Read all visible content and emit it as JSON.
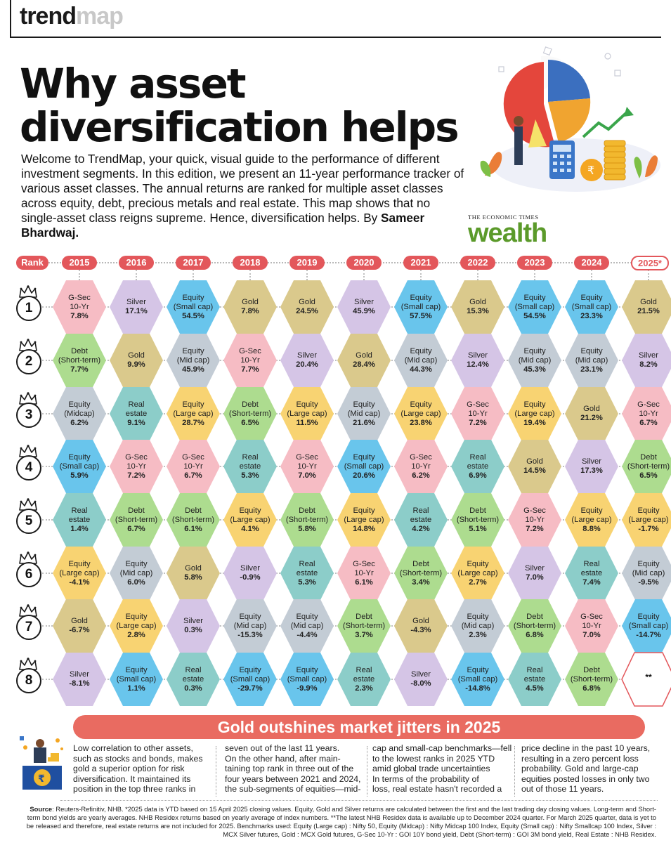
{
  "brand": {
    "part1": "trend",
    "part2": "map"
  },
  "title": "Why asset diversification helps",
  "intro": {
    "text": "Welcome to TrendMap, your quick, visual guide to the performance of different investment segments. In this edition, we present an 11-year performance tracker of various asset classes. The annual returns are ranked for multiple asset classes across equity, debt, precious metals and real estate. This map shows that no single-asset class reigns supreme. Hence, diversification helps. By ",
    "author": "Sameer Bhardwaj."
  },
  "logo": {
    "top": "THE ECONOMIC TIMES",
    "word": "wealth"
  },
  "table": {
    "rank_label": "Rank",
    "years": [
      "2015",
      "2016",
      "2017",
      "2018",
      "2019",
      "2020",
      "2021",
      "2022",
      "2023",
      "2024",
      "2025*"
    ],
    "ranks": [
      "1",
      "2",
      "3",
      "4",
      "5",
      "6",
      "7",
      "8"
    ],
    "rows": [
      [
        {
          "label": "G-Sec\n10-Yr",
          "value": "7.8%",
          "kind": "gsec"
        },
        {
          "label": "Silver",
          "value": "17.1%",
          "kind": "silver"
        },
        {
          "label": "Equity\n(Small cap)",
          "value": "54.5%",
          "kind": "eqs"
        },
        {
          "label": "Gold",
          "value": "7.8%",
          "kind": "gold"
        },
        {
          "label": "Gold",
          "value": "24.5%",
          "kind": "gold"
        },
        {
          "label": "Silver",
          "value": "45.9%",
          "kind": "silver"
        },
        {
          "label": "Equity\n(Small cap)",
          "value": "57.5%",
          "kind": "eqs"
        },
        {
          "label": "Gold",
          "value": "15.3%",
          "kind": "gold"
        },
        {
          "label": "Equity\n(Small cap)",
          "value": "54.5%",
          "kind": "eqs"
        },
        {
          "label": "Equity\n(Small cap)",
          "value": "23.3%",
          "kind": "eqs"
        },
        {
          "label": "Gold",
          "value": "21.5%",
          "kind": "gold"
        }
      ],
      [
        {
          "label": "Debt\n(Short-term)",
          "value": "7.7%",
          "kind": "debt"
        },
        {
          "label": "Gold",
          "value": "9.9%",
          "kind": "gold"
        },
        {
          "label": "Equity\n(Mid cap)",
          "value": "45.9%",
          "kind": "eqm"
        },
        {
          "label": "G-Sec\n10-Yr",
          "value": "7.7%",
          "kind": "gsec"
        },
        {
          "label": "Silver",
          "value": "20.4%",
          "kind": "silver"
        },
        {
          "label": "Gold",
          "value": "28.4%",
          "kind": "gold"
        },
        {
          "label": "Equity\n(Mid cap)",
          "value": "44.3%",
          "kind": "eqm"
        },
        {
          "label": "Silver",
          "value": "12.4%",
          "kind": "silver"
        },
        {
          "label": "Equity\n(Mid cap)",
          "value": "45.3%",
          "kind": "eqm"
        },
        {
          "label": "Equity\n(Mid cap)",
          "value": "23.1%",
          "kind": "eqm"
        },
        {
          "label": "Silver",
          "value": "8.2%",
          "kind": "silver"
        }
      ],
      [
        {
          "label": "Equity\n(Midcap)",
          "value": "6.2%",
          "kind": "eqm"
        },
        {
          "label": "Real\nestate",
          "value": "9.1%",
          "kind": "real"
        },
        {
          "label": "Equity\n(Large cap)",
          "value": "28.7%",
          "kind": "eql"
        },
        {
          "label": "Debt\n(Short-term)",
          "value": "6.5%",
          "kind": "debt"
        },
        {
          "label": "Equity\n(Large cap)",
          "value": "11.5%",
          "kind": "eql"
        },
        {
          "label": "Equity\n(Mid cap)",
          "value": "21.6%",
          "kind": "eqm"
        },
        {
          "label": "Equity\n(Large cap)",
          "value": "23.8%",
          "kind": "eql"
        },
        {
          "label": "G-Sec\n10-Yr",
          "value": "7.2%",
          "kind": "gsec"
        },
        {
          "label": "Equity\n(Large cap)",
          "value": "19.4%",
          "kind": "eql"
        },
        {
          "label": "Gold",
          "value": "21.2%",
          "kind": "gold"
        },
        {
          "label": "G-Sec\n10-Yr",
          "value": "6.7%",
          "kind": "gsec"
        }
      ],
      [
        {
          "label": "Equity\n(Small cap)",
          "value": "5.9%",
          "kind": "eqs"
        },
        {
          "label": "G-Sec\n10-Yr",
          "value": "7.2%",
          "kind": "gsec"
        },
        {
          "label": "G-Sec\n10-Yr",
          "value": "6.7%",
          "kind": "gsec"
        },
        {
          "label": "Real\nestate",
          "value": "5.3%",
          "kind": "real"
        },
        {
          "label": "G-Sec\n10-Yr",
          "value": "7.0%",
          "kind": "gsec"
        },
        {
          "label": "Equity\n(Small cap)",
          "value": "20.6%",
          "kind": "eqs"
        },
        {
          "label": "G-Sec\n10-Yr",
          "value": "6.2%",
          "kind": "gsec"
        },
        {
          "label": "Real\nestate",
          "value": "6.9%",
          "kind": "real"
        },
        {
          "label": "Gold",
          "value": "14.5%",
          "kind": "gold"
        },
        {
          "label": "Silver",
          "value": "17.3%",
          "kind": "silver"
        },
        {
          "label": "Debt\n(Short-term)",
          "value": "6.5%",
          "kind": "debt"
        }
      ],
      [
        {
          "label": "Real\nestate",
          "value": "1.4%",
          "kind": "real"
        },
        {
          "label": "Debt\n(Short-term)",
          "value": "6.7%",
          "kind": "debt"
        },
        {
          "label": "Debt\n(Short-term)",
          "value": "6.1%",
          "kind": "debt"
        },
        {
          "label": "Equity\n(Large cap)",
          "value": "4.1%",
          "kind": "eql"
        },
        {
          "label": "Debt\n(Short-term)",
          "value": "5.8%",
          "kind": "debt"
        },
        {
          "label": "Equity\n(Large cap)",
          "value": "14.8%",
          "kind": "eql"
        },
        {
          "label": "Real\nestate",
          "value": "4.2%",
          "kind": "real"
        },
        {
          "label": "Debt\n(Short-term)",
          "value": "5.1%",
          "kind": "debt"
        },
        {
          "label": "G-Sec\n10-Yr",
          "value": "7.2%",
          "kind": "gsec"
        },
        {
          "label": "Equity\n(Large cap)",
          "value": "8.8%",
          "kind": "eql"
        },
        {
          "label": "Equity\n(Large cap)",
          "value": "-1.7%",
          "kind": "eql"
        }
      ],
      [
        {
          "label": "Equity\n(Large cap)",
          "value": "-4.1%",
          "kind": "eql"
        },
        {
          "label": "Equity\n(Mid cap)",
          "value": "6.0%",
          "kind": "eqm"
        },
        {
          "label": "Gold",
          "value": "5.8%",
          "kind": "gold"
        },
        {
          "label": "Silver",
          "value": "-0.9%",
          "kind": "silver"
        },
        {
          "label": "Real\nestate",
          "value": "5.3%",
          "kind": "real"
        },
        {
          "label": "G-Sec\n10-Yr",
          "value": "6.1%",
          "kind": "gsec"
        },
        {
          "label": "Debt\n(Short-term)",
          "value": "3.4%",
          "kind": "debt"
        },
        {
          "label": "Equity\n(Large cap)",
          "value": "2.7%",
          "kind": "eql"
        },
        {
          "label": "Silver",
          "value": "7.0%",
          "kind": "silver"
        },
        {
          "label": "Real\nestate",
          "value": "7.4%",
          "kind": "real"
        },
        {
          "label": "Equity\n(Mid cap)",
          "value": "-9.5%",
          "kind": "eqm"
        }
      ],
      [
        {
          "label": "Gold",
          "value": "-6.7%",
          "kind": "gold"
        },
        {
          "label": "Equity\n(Large cap)",
          "value": "2.8%",
          "kind": "eql"
        },
        {
          "label": "Silver",
          "value": "0.3%",
          "kind": "silver"
        },
        {
          "label": "Equity\n(Mid cap)",
          "value": "-15.3%",
          "kind": "eqm"
        },
        {
          "label": "Equity\n(Mid cap)",
          "value": "-4.4%",
          "kind": "eqm"
        },
        {
          "label": "Debt\n(Short-term)",
          "value": "3.7%",
          "kind": "debt"
        },
        {
          "label": "Gold",
          "value": "-4.3%",
          "kind": "gold"
        },
        {
          "label": "Equity\n(Mid cap)",
          "value": "2.3%",
          "kind": "eqm"
        },
        {
          "label": "Debt\n(Short-term)",
          "value": "6.8%",
          "kind": "debt"
        },
        {
          "label": "G-Sec\n10-Yr",
          "value": "7.0%",
          "kind": "gsec"
        },
        {
          "label": "Equity\n(Small cap)",
          "value": "-14.7%",
          "kind": "eqs"
        }
      ],
      [
        {
          "label": "Silver",
          "value": "-8.1%",
          "kind": "silver"
        },
        {
          "label": "Equity\n(Small cap)",
          "value": "1.1%",
          "kind": "eqs"
        },
        {
          "label": "Real\nestate",
          "value": "0.3%",
          "kind": "real"
        },
        {
          "label": "Equity\n(Small cap)",
          "value": "-29.7%",
          "kind": "eqs"
        },
        {
          "label": "Equity\n(Small cap)",
          "value": "-9.9%",
          "kind": "eqs"
        },
        {
          "label": "Real\nestate",
          "value": "2.3%",
          "kind": "real"
        },
        {
          "label": "Silver",
          "value": "-8.0%",
          "kind": "silver"
        },
        {
          "label": "Equity\n(Small cap)",
          "value": "-14.8%",
          "kind": "eqs"
        },
        {
          "label": "Real\nestate",
          "value": "4.5%",
          "kind": "real"
        },
        {
          "label": "Debt\n(Short-term)",
          "value": "6.8%",
          "kind": "debt"
        },
        {
          "label": "",
          "value": "**",
          "kind": "na"
        }
      ]
    ]
  },
  "colors": {
    "header_pill": "#e3575b",
    "banner": "#e96b61"
  },
  "banner": "Gold outshines market jitters in 2025",
  "columns": [
    "Low correlation to other assets,\nsuch as stocks and bonds, makes\ngold a superior option for risk\ndiversification. It maintained its\nposition in the top three ranks in",
    "seven out of the last 11 years.\n    On the other hand, after main-\ntaining top rank in three out of the\nfour years between 2021 and 2024,\nthe sub-segments of equities—mid-",
    "cap and small-cap benchmarks—fell\nto the lowest ranks in 2025 YTD\namid global trade uncertainties\n    In terms of the probability of\nloss, real estate hasn't recorded a",
    "price decline in the past 10 years,\nresulting in a zero percent loss\nprobability. Gold and large-cap\nequities posted losses in only two\nout of those 11 years."
  ],
  "source": {
    "label": "Source",
    "text": ": Reuters-Refinitiv, NHB. *2025 data is YTD based on 15 April 2025 closing values. Equity, Gold and Silver returns are calculated between the first and the last trading day closing values. Long-term and Short-term bond yields are yearly averages. NHB Residex returns based on yearly average of index numbers. **The latest NHB Residex data is available up to December 2024 quarter. For March 2025 quarter, data is yet to be released and therefore, real estate returns are not included for 2025. Benchmarks used: Equity (Large cap) : Nifty 50, Equity (Midcap) : Nifty Midcap 100 Index, Equity (Small cap) : Nifty Smallcap 100 Index, Silver : MCX Silver futures, Gold : MCX Gold futures, G-Sec 10-Yr : GOI 10Y bond yield, Debt (Short-term) : GOI 3M bond yield, Real Estate : NHB Residex."
  }
}
